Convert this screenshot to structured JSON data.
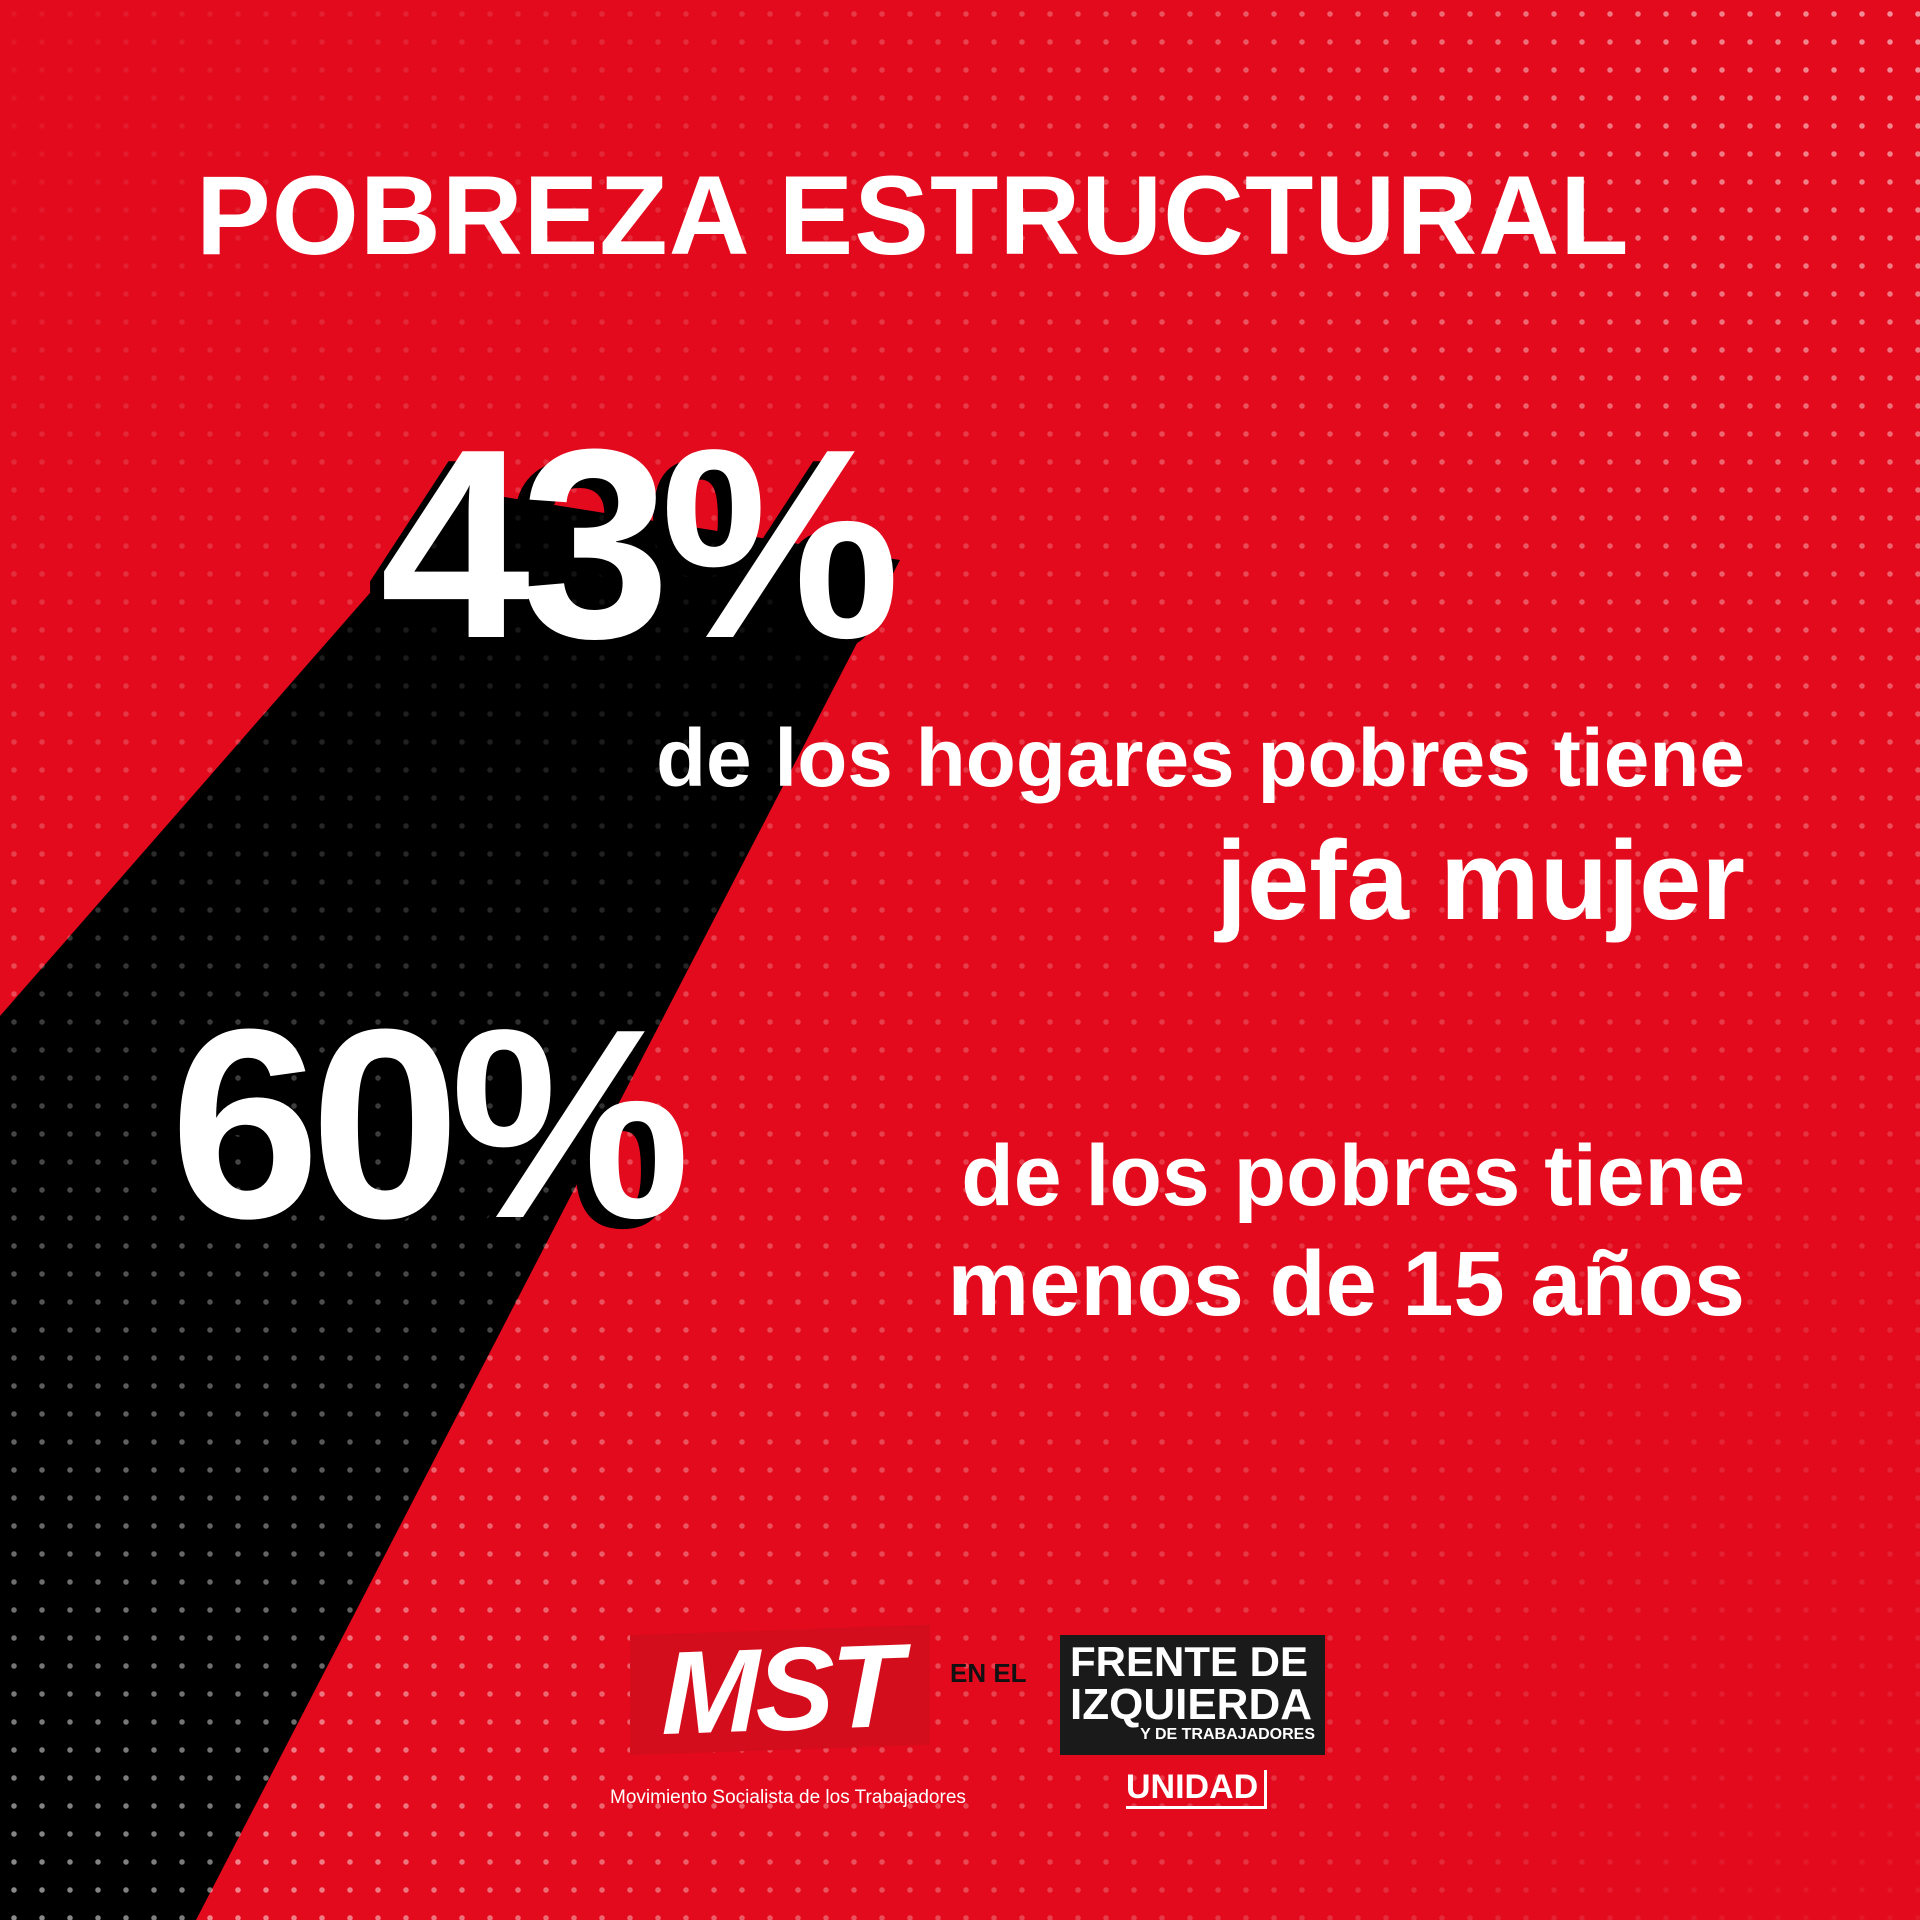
{
  "title": "POBREZA ESTRUCTURAL",
  "stat1": {
    "value": "43%",
    "line1": "de los hogares pobres tiene",
    "line2": "jefa mujer"
  },
  "stat2": {
    "value": "60%",
    "line1": "de los pobres tiene",
    "line2": "menos de 15 años"
  },
  "footer": {
    "mst_logo": "MST",
    "mst_full": "Movimiento Socialista de los Trabajadores",
    "connector": "EN EL",
    "fit_line1": "FRENTE DE",
    "fit_line2": "IZQUIERDA",
    "fit_line3": "Y DE TRABAJADORES",
    "unidad": "UNIDAD"
  },
  "colors": {
    "background": "#e20a1c",
    "band": "#000000",
    "text": "#ffffff"
  }
}
